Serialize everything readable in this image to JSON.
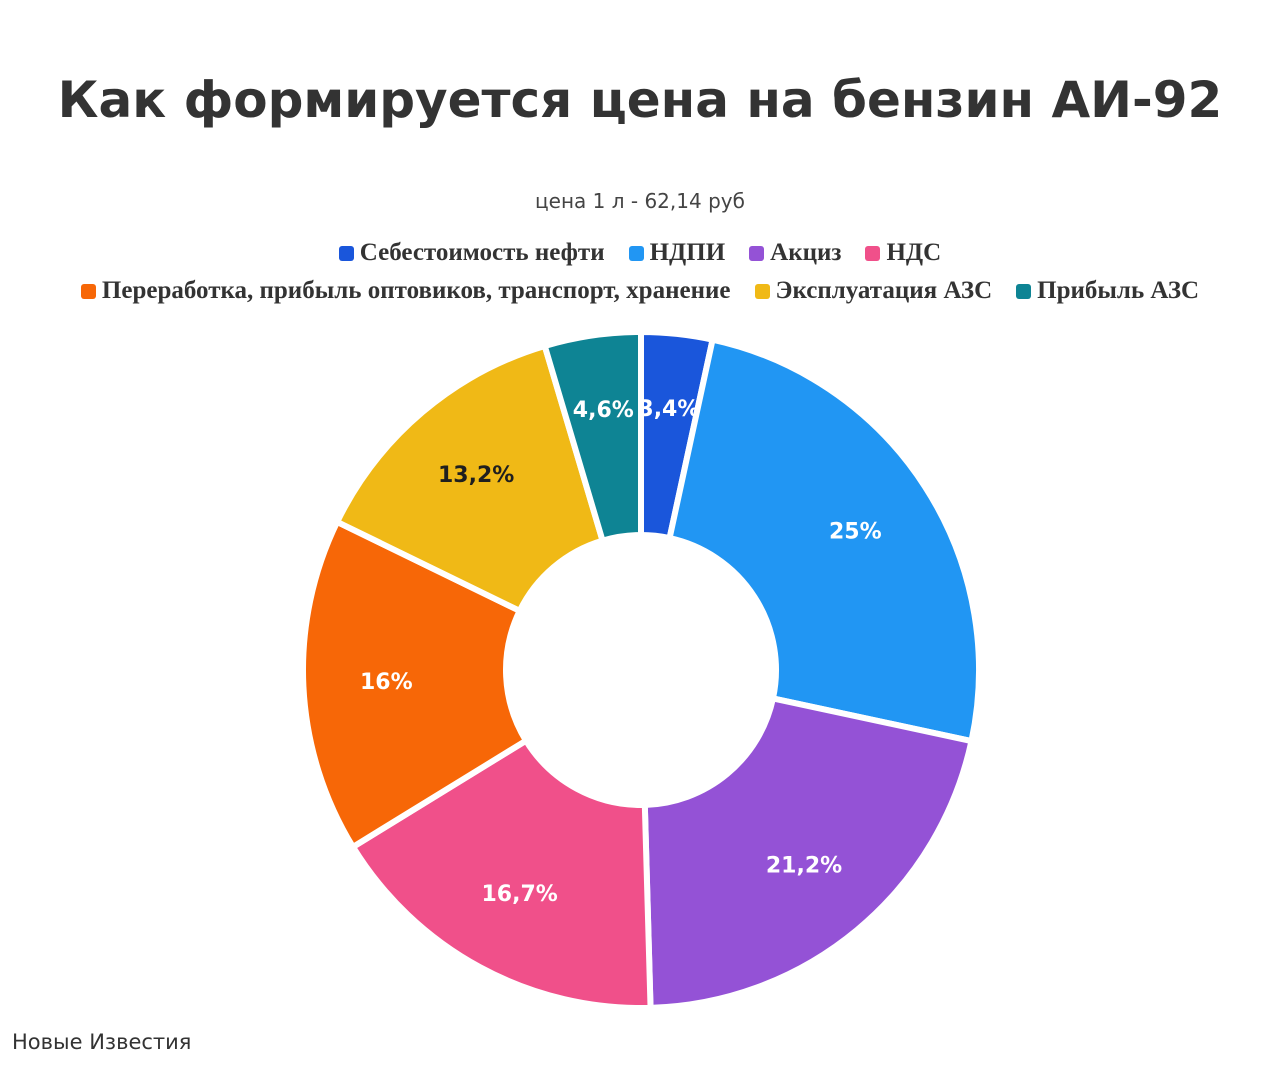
{
  "header": {
    "title": "Как формируется цена на бензин АИ-92",
    "subtitle": "цена 1 л - 62,14 руб"
  },
  "chart_data": {
    "type": "pie",
    "variant": "donut",
    "title": "Как формируется цена на бензин АИ-92",
    "subtitle": "цена 1 л - 62,14 руб",
    "legend_position": "top",
    "unit": "%",
    "slices": [
      {
        "name": "Себестоимость нефти",
        "value": 3.4,
        "label": "3,4%",
        "color": "#1a56db",
        "label_color": "#ffffff"
      },
      {
        "name": "НДПИ",
        "value": 25,
        "label": "25%",
        "color": "#2196f3",
        "label_color": "#ffffff"
      },
      {
        "name": "Акциз",
        "value": 21.2,
        "label": "21,2%",
        "color": "#9452d6",
        "label_color": "#ffffff"
      },
      {
        "name": "НДС",
        "value": 16.7,
        "label": "16,7%",
        "color": "#f0508a",
        "label_color": "#ffffff"
      },
      {
        "name": "Переработка, прибыль оптовиков, транспорт, хранение",
        "value": 16,
        "label": "16%",
        "color": "#f76707",
        "label_color": "#ffffff"
      },
      {
        "name": "Эксплуатация АЗС",
        "value": 13.2,
        "label": "13,2%",
        "color": "#f0b916",
        "label_color": "#1f1f1f"
      },
      {
        "name": "Прибыль АЗС",
        "value": 4.6,
        "label": "4,6%",
        "color": "#0e8494",
        "label_color": "#ffffff"
      }
    ]
  },
  "source": {
    "text": "Новые Известия"
  }
}
